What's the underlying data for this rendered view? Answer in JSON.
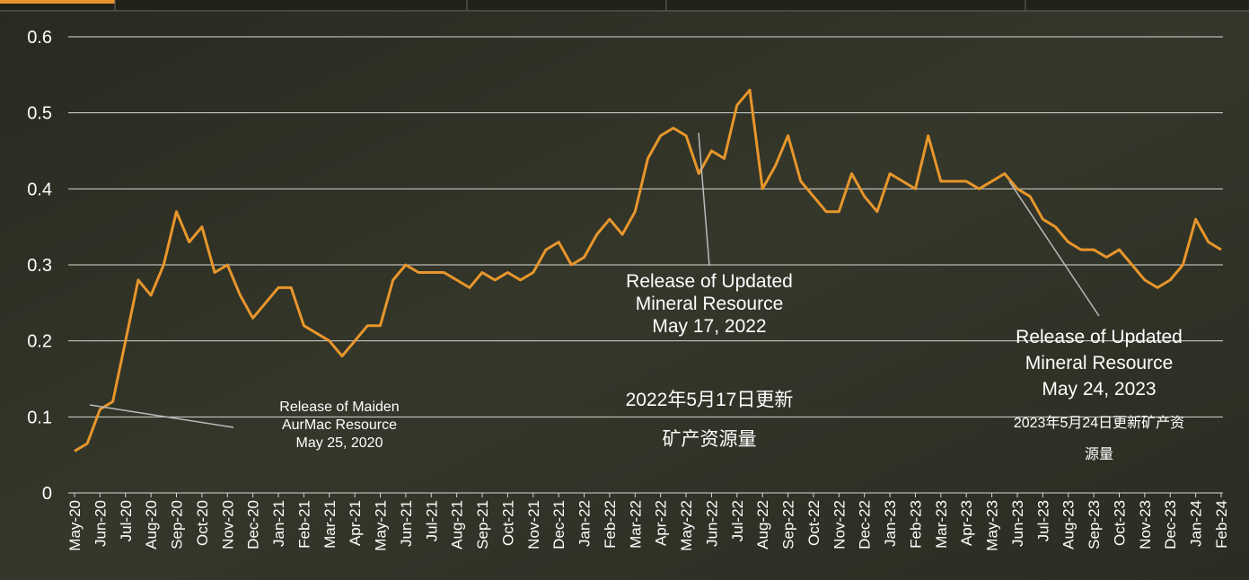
{
  "chart_data": {
    "type": "line",
    "categories": [
      "May-20",
      null,
      "Jun-20",
      null,
      "Jul-20",
      null,
      "Aug-20",
      null,
      "Sep-20",
      null,
      "Oct-20",
      null,
      "Nov-20",
      null,
      "Dec-20",
      null,
      "Jan-21",
      null,
      "Feb-21",
      null,
      "Mar-21",
      null,
      "Apr-21",
      null,
      "May-21",
      null,
      "Jun-21",
      null,
      "Jul-21",
      null,
      "Aug-21",
      null,
      "Sep-21",
      null,
      "Oct-21",
      null,
      "Nov-21",
      null,
      "Dec-21",
      null,
      "Jan-22",
      null,
      "Feb-22",
      null,
      "Mar-22",
      null,
      "Apr-22",
      null,
      "May-22",
      null,
      "Jun-22",
      null,
      "Jul-22",
      null,
      "Aug-22",
      null,
      "Sep-22",
      null,
      "Oct-22",
      null,
      "Nov-22",
      null,
      "Dec-22",
      null,
      "Jan-23",
      null,
      "Feb-23",
      null,
      "Mar-23",
      null,
      "Apr-23",
      null,
      "May-23",
      null,
      "Jun-23",
      null,
      "Jul-23",
      null,
      "Aug-23",
      null,
      "Sep-23",
      null,
      "Oct-23",
      null,
      "Nov-23",
      null,
      "Dec-23",
      null,
      "Jan-24",
      null,
      "Feb-24"
    ],
    "values": [
      0.055,
      0.065,
      0.11,
      0.12,
      0.2,
      0.28,
      0.26,
      0.3,
      0.37,
      0.33,
      0.35,
      0.29,
      0.3,
      0.26,
      0.23,
      0.25,
      0.27,
      0.27,
      0.22,
      0.21,
      0.2,
      0.18,
      0.2,
      0.22,
      0.22,
      0.28,
      0.3,
      0.29,
      0.29,
      0.29,
      0.28,
      0.27,
      0.29,
      0.28,
      0.29,
      0.28,
      0.29,
      0.32,
      0.33,
      0.3,
      0.31,
      0.34,
      0.36,
      0.34,
      0.37,
      0.44,
      0.47,
      0.48,
      0.47,
      0.42,
      0.45,
      0.44,
      0.51,
      0.53,
      0.4,
      0.43,
      0.47,
      0.41,
      0.39,
      0.37,
      0.37,
      0.42,
      0.39,
      0.37,
      0.42,
      0.41,
      0.4,
      0.47,
      0.41,
      0.41,
      0.41,
      0.4,
      0.41,
      0.42,
      0.4,
      0.39,
      0.36,
      0.35,
      0.33,
      0.32,
      0.32,
      0.31,
      0.32,
      0.3,
      0.28,
      0.27,
      0.28,
      0.3,
      0.36,
      0.33,
      0.32
    ],
    "color": "#e8962c",
    "ylim": [
      0,
      0.6
    ],
    "yticks": [
      0,
      0.1,
      0.2,
      0.3,
      0.4,
      0.5,
      0.6
    ],
    "grid": true,
    "annotations": [
      {
        "lines": [
          "Release of Maiden",
          "AurMac Resource",
          "May 25, 2020"
        ]
      },
      {
        "lines": [
          "Release of Updated",
          "Mineral Resource",
          "May 17, 2022"
        ]
      },
      {
        "lines": [
          "2022年5月17日更新",
          "矿产资源量"
        ]
      },
      {
        "lines": [
          "Release of Updated",
          "Mineral Resource",
          "May 24, 2023"
        ]
      },
      {
        "lines": [
          "2023年5月24日更新矿产资",
          "源量"
        ]
      }
    ]
  }
}
